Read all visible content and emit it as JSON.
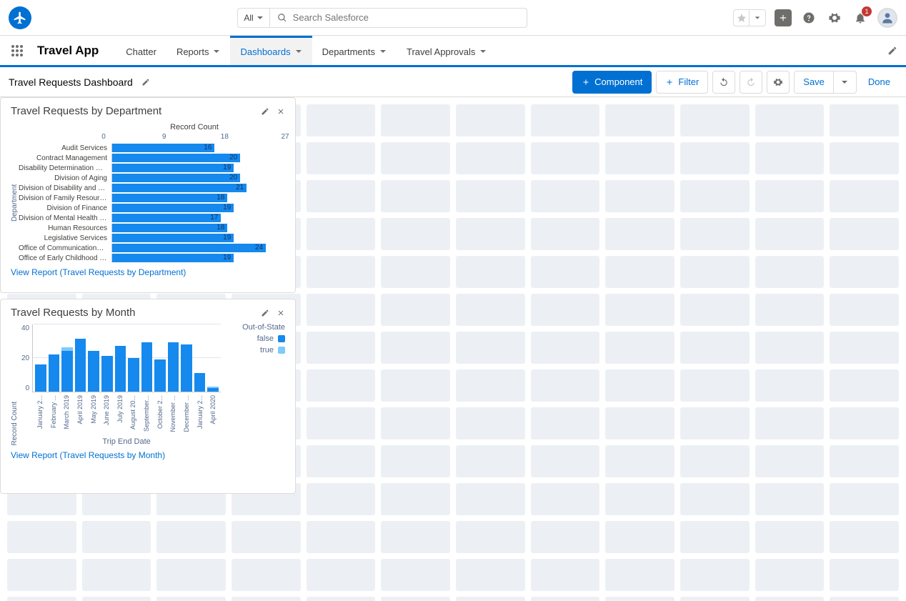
{
  "header": {
    "search_scope": "All",
    "search_placeholder": "Search Salesforce",
    "notification_count": "1"
  },
  "appnav": {
    "app_name": "Travel App",
    "tabs": [
      {
        "label": "Chatter",
        "has_menu": false,
        "active": false
      },
      {
        "label": "Reports",
        "has_menu": true,
        "active": false
      },
      {
        "label": "Dashboards",
        "has_menu": true,
        "active": true
      },
      {
        "label": "Departments",
        "has_menu": true,
        "active": false
      },
      {
        "label": "Travel Approvals",
        "has_menu": true,
        "active": false
      }
    ]
  },
  "toolbar": {
    "title": "Travel Requests Dashboard",
    "component_btn": "Component",
    "filter_btn": "Filter",
    "save_btn": "Save",
    "done_btn": "Done"
  },
  "widget1": {
    "title": "Travel Requests by Department",
    "x_axis_title": "Record Count",
    "y_axis_title": "Department",
    "xticks": [
      0,
      9,
      18,
      27
    ],
    "xmax": 27,
    "bar_color": "#1589ee",
    "categories": [
      "Audit Services",
      "Contract Management",
      "Disability Determination Bu...",
      "Division of Aging",
      "Division of Disability and Re...",
      "Division of Family Resources",
      "Division of Finance",
      "Division of Mental Health a...",
      "Human Resources",
      "Legislative Services",
      "Office of Communications ...",
      "Office of Early Childhood a..."
    ],
    "values": [
      16,
      20,
      19,
      20,
      21,
      18,
      19,
      17,
      18,
      19,
      24,
      19
    ],
    "view_report": "View Report (Travel Requests by Department)"
  },
  "widget2": {
    "title": "Travel Requests by Month",
    "y_axis_title": "Record Count",
    "x_axis_title": "Trip End Date",
    "legend_title": "Out-of-State",
    "legend": [
      {
        "label": "false",
        "color": "#1589ee"
      },
      {
        "label": "true",
        "color": "#7dcafc"
      }
    ],
    "yticks": [
      40,
      20,
      0
    ],
    "ymax": 40,
    "categories": [
      "January 2...",
      "February ...",
      "March 2019",
      "April 2019",
      "May 2019",
      "June 2019",
      "July 2019",
      "August 20...",
      "September...",
      "October 2...",
      "November ...",
      "December ...",
      "January 2...",
      "April 2020"
    ],
    "series_false": [
      16,
      22,
      24,
      31,
      24,
      21,
      27,
      20,
      29,
      19,
      29,
      28,
      11,
      2
    ],
    "series_true": [
      0,
      0,
      2,
      0,
      0,
      0,
      0,
      0,
      0,
      0,
      0,
      0,
      0,
      1
    ],
    "color_false": "#1589ee",
    "color_true": "#7dcafc",
    "view_report": "View Report (Travel Requests by Month)"
  },
  "grid": {
    "cell_bg": "#ecf0f5",
    "rows": 14,
    "cols": 12
  }
}
